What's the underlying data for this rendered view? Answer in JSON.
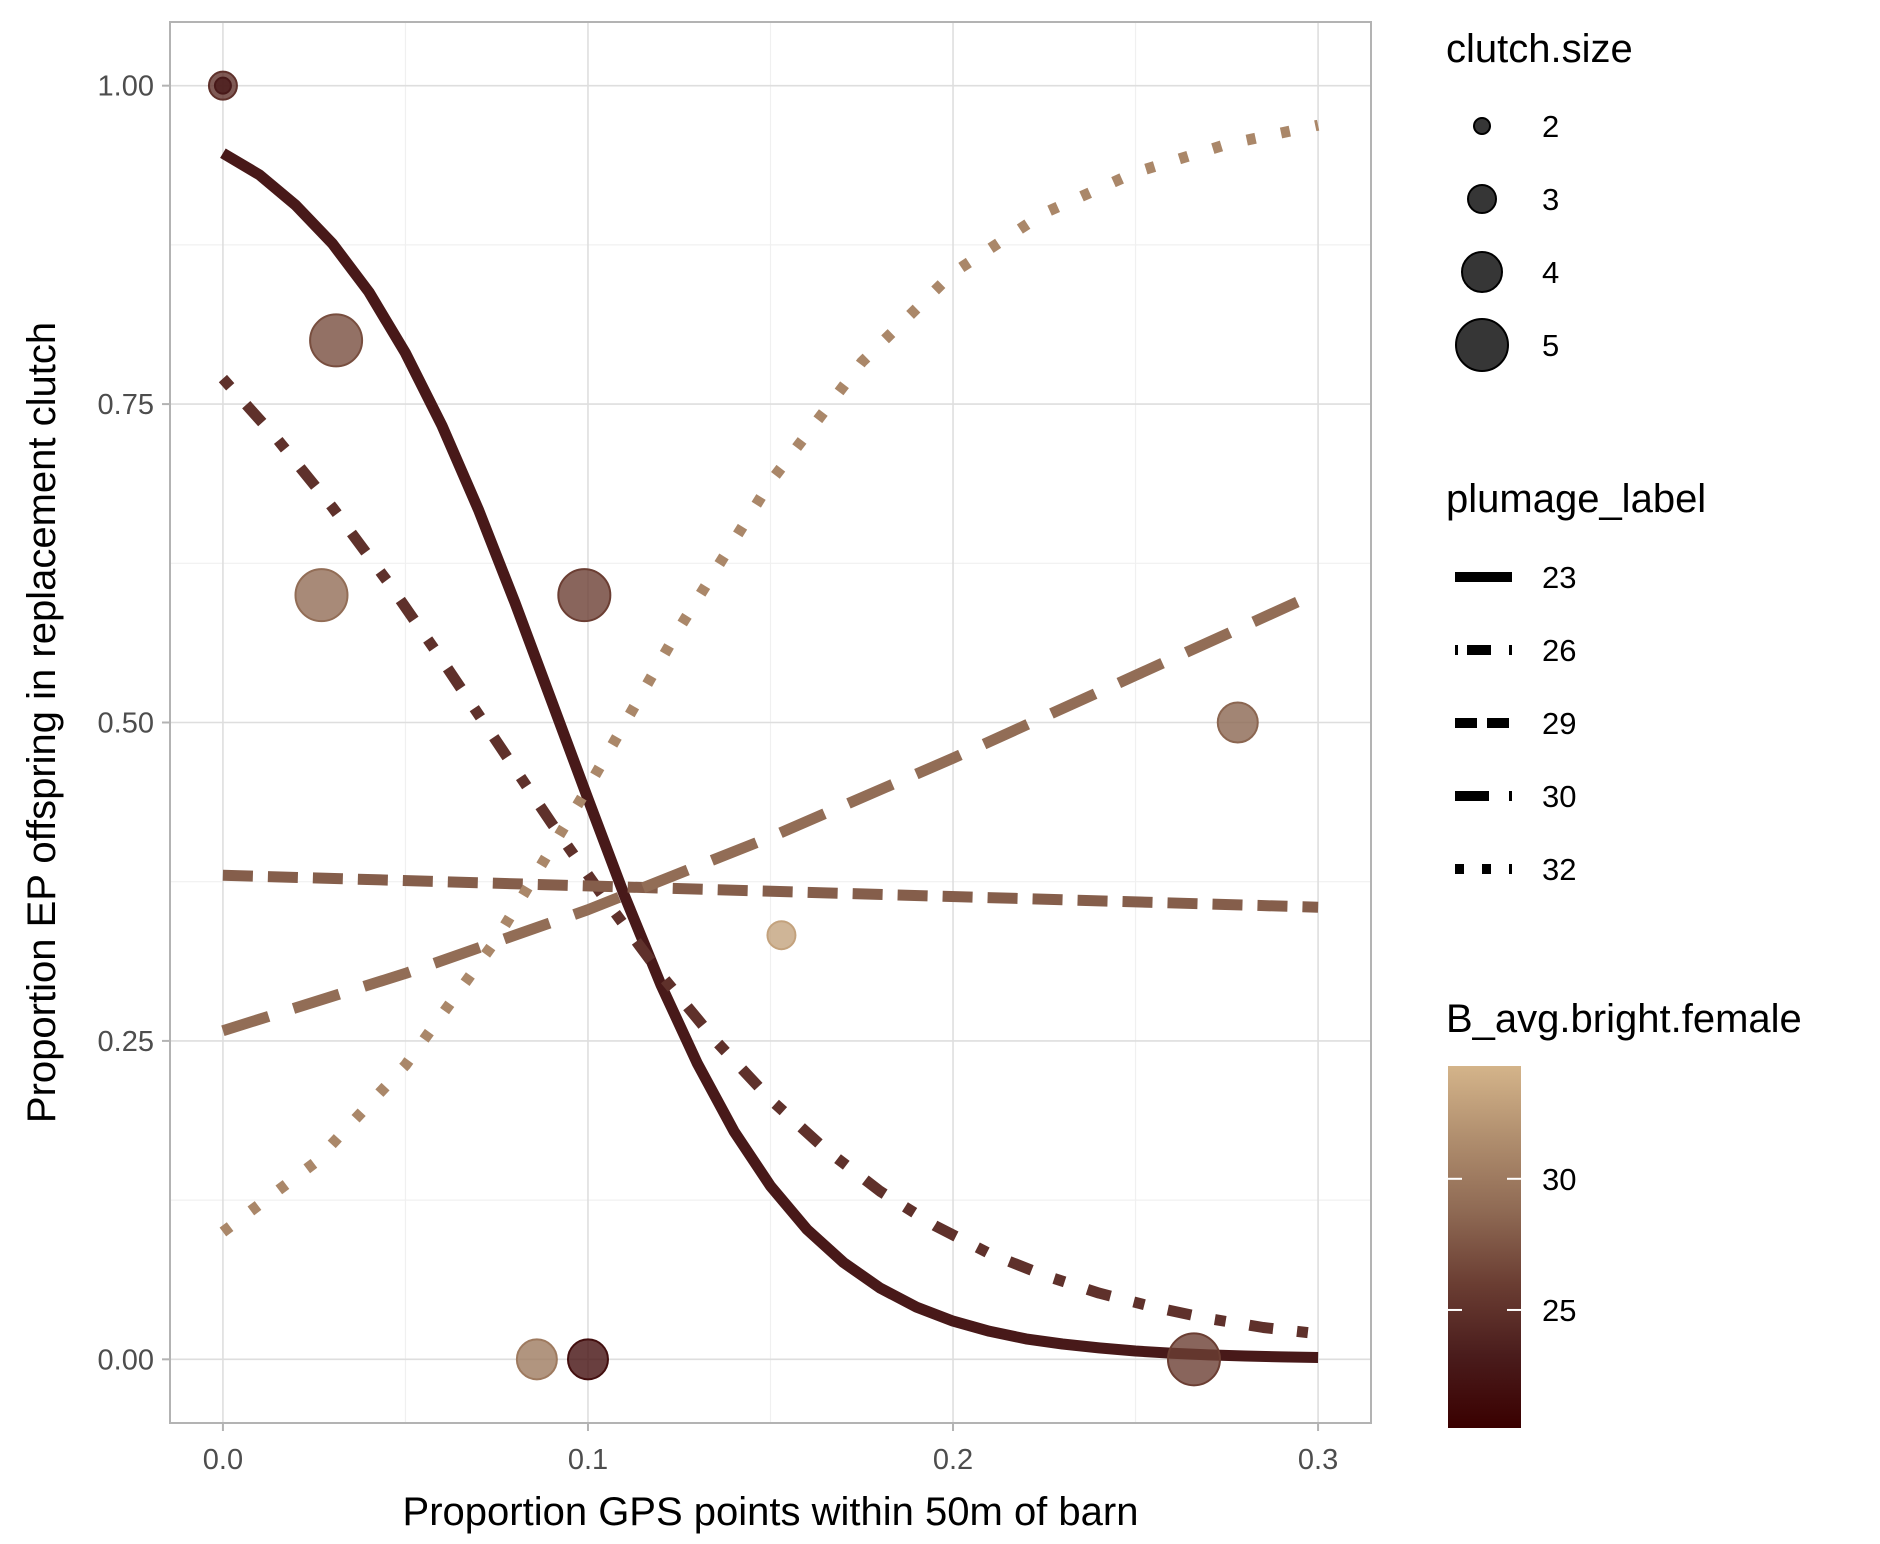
{
  "chart_data": {
    "type": "scatter",
    "title": "",
    "xlabel": "Proportion GPS points within 50m of barn",
    "ylabel": "Proportion EP offspring in replacement clutch",
    "xlim": [
      -0.0145,
      0.3145
    ],
    "ylim": [
      -0.05,
      1.05
    ],
    "x_ticks": [
      0.0,
      0.1,
      0.2,
      0.3
    ],
    "x_tick_labels": [
      "0.0",
      "0.1",
      "0.2",
      "0.3"
    ],
    "y_ticks": [
      0.0,
      0.25,
      0.5,
      0.75,
      1.0
    ],
    "y_tick_labels": [
      "0.00",
      "0.25",
      "0.50",
      "0.75",
      "1.00"
    ],
    "grid": true,
    "theme": "light",
    "points": [
      {
        "x": 0.0,
        "y": 1.0,
        "clutch_size": 2,
        "brightness": 23
      },
      {
        "x": 0.0,
        "y": 1.0,
        "clutch_size": 3,
        "brightness": 25
      },
      {
        "x": 0.031,
        "y": 0.8,
        "clutch_size": 5,
        "brightness": 27
      },
      {
        "x": 0.027,
        "y": 0.6,
        "clutch_size": 5,
        "brightness": 29
      },
      {
        "x": 0.099,
        "y": 0.6,
        "clutch_size": 5,
        "brightness": 26
      },
      {
        "x": 0.278,
        "y": 0.5,
        "clutch_size": 4,
        "brightness": 28.5
      },
      {
        "x": 0.153,
        "y": 0.333,
        "clutch_size": 3,
        "brightness": 33
      },
      {
        "x": 0.086,
        "y": 0.0,
        "clutch_size": 4,
        "brightness": 30
      },
      {
        "x": 0.1,
        "y": 0.0,
        "clutch_size": 4,
        "brightness": 22
      },
      {
        "x": 0.266,
        "y": 0.0,
        "clutch_size": 5,
        "brightness": 26
      }
    ],
    "series": [
      {
        "plumage": "23",
        "linetype": "solid",
        "brightness": 23,
        "x": [
          0.0,
          0.01,
          0.02,
          0.03,
          0.04,
          0.05,
          0.06,
          0.07,
          0.08,
          0.09,
          0.1,
          0.11,
          0.12,
          0.13,
          0.14,
          0.15,
          0.16,
          0.17,
          0.18,
          0.19,
          0.2,
          0.21,
          0.22,
          0.23,
          0.24,
          0.25,
          0.26,
          0.27,
          0.28,
          0.29,
          0.3
        ],
        "y": [
          0.947,
          0.93,
          0.906,
          0.876,
          0.838,
          0.79,
          0.733,
          0.667,
          0.594,
          0.517,
          0.44,
          0.364,
          0.294,
          0.232,
          0.179,
          0.136,
          0.102,
          0.076,
          0.056,
          0.041,
          0.03,
          0.022,
          0.016,
          0.012,
          0.009,
          0.0065,
          0.0048,
          0.0035,
          0.0026,
          0.0019,
          0.0014
        ]
      },
      {
        "plumage": "26",
        "linetype": "dotdash",
        "brightness": 25,
        "x": [
          0.0,
          0.015,
          0.03,
          0.045,
          0.06,
          0.075,
          0.09,
          0.105,
          0.12,
          0.135,
          0.15,
          0.165,
          0.18,
          0.195,
          0.21,
          0.225,
          0.24,
          0.255,
          0.27,
          0.285,
          0.3
        ],
        "y": [
          0.77,
          0.722,
          0.669,
          0.611,
          0.549,
          0.485,
          0.421,
          0.36,
          0.302,
          0.25,
          0.204,
          0.165,
          0.132,
          0.105,
          0.083,
          0.066,
          0.052,
          0.041,
          0.032,
          0.025,
          0.02
        ]
      },
      {
        "plumage": "29",
        "linetype": "dashed",
        "brightness": 28,
        "x": [
          0.0,
          0.3
        ],
        "y": [
          0.38,
          0.355
        ]
      },
      {
        "plumage": "30",
        "linetype": "longdash",
        "brightness": 29,
        "x": [
          0.0,
          0.05,
          0.1,
          0.15,
          0.2,
          0.25,
          0.3
        ],
        "y": [
          0.258,
          0.303,
          0.353,
          0.41,
          0.472,
          0.537,
          0.602
        ]
      },
      {
        "plumage": "32",
        "linetype": "dotted",
        "brightness": 31,
        "x": [
          0.0,
          0.025,
          0.05,
          0.075,
          0.1,
          0.125,
          0.15,
          0.175,
          0.2,
          0.225,
          0.25,
          0.275,
          0.3
        ],
        "y": [
          0.1,
          0.154,
          0.231,
          0.33,
          0.449,
          0.574,
          0.689,
          0.783,
          0.853,
          0.9,
          0.932,
          0.954,
          0.969
        ]
      }
    ],
    "legends": {
      "size": {
        "title": "clutch.size",
        "values": [
          2,
          3,
          4,
          5
        ],
        "labels": [
          "2",
          "3",
          "4",
          "5"
        ]
      },
      "linetype": {
        "title": "plumage_label",
        "labels": [
          "23",
          "26",
          "29",
          "30",
          "32"
        ],
        "types": [
          "solid",
          "dotdash",
          "dashed",
          "longdash",
          "dotted"
        ]
      },
      "color": {
        "title": "B_avg.bright.female",
        "range": [
          20.5,
          34.3
        ],
        "tick_values": [
          25,
          30
        ],
        "tick_labels": [
          "25",
          "30"
        ],
        "colors": [
          "#3a0000",
          "#4a1c1c",
          "#6b3e33",
          "#8f6a54",
          "#b08e6e",
          "#d4b48a"
        ]
      }
    }
  }
}
